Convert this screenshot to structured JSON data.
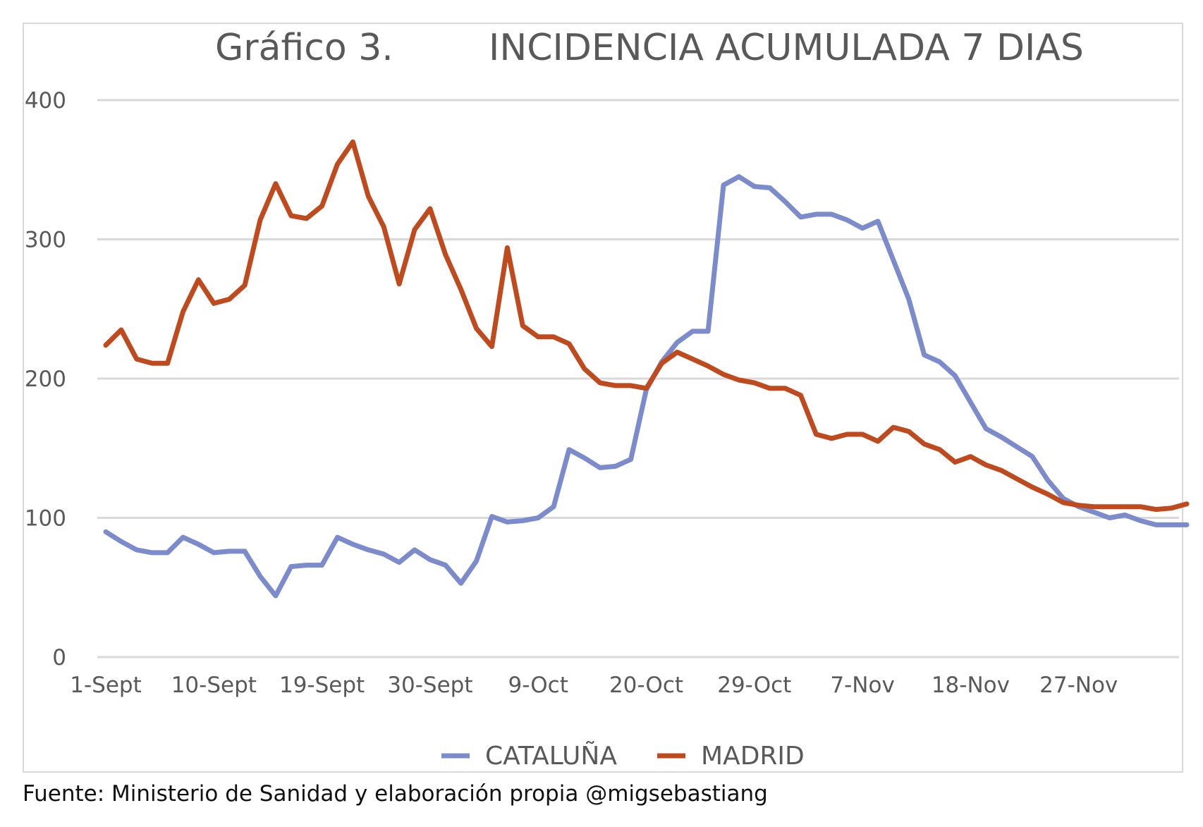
{
  "chart_data": {
    "type": "line",
    "title_number": "Gráfico 3.",
    "title": "INCIDENCIA ACUMULADA 7 DIAS",
    "xlabel": "",
    "ylabel": "",
    "ylim": [
      0,
      400
    ],
    "yticks": [
      0,
      100,
      200,
      300,
      400
    ],
    "xtick_labels": [
      "1-Sept",
      "10-Sept",
      "19-Sept",
      "30-Sept",
      "9-Oct",
      "20-Oct",
      "29-Oct",
      "7-Nov",
      "18-Nov",
      "27-Nov"
    ],
    "xtick_positions": [
      0,
      7,
      14,
      21,
      28,
      35,
      42,
      49,
      56,
      63
    ],
    "grid": true,
    "legend_position": "bottom",
    "series": [
      {
        "name": "CATALUÑA",
        "color": "#7b8bcb",
        "values": [
          90,
          83,
          77,
          75,
          75,
          86,
          81,
          75,
          76,
          76,
          58,
          44,
          65,
          66,
          66,
          86,
          81,
          77,
          74,
          68,
          77,
          70,
          66,
          53,
          69,
          101,
          97,
          98,
          100,
          108,
          149,
          143,
          136,
          137,
          142,
          192,
          212,
          226,
          234,
          234,
          339,
          345,
          338,
          337,
          327,
          316,
          318,
          318,
          314,
          308,
          313,
          285,
          257,
          217,
          212,
          202,
          183,
          164,
          158,
          151,
          144,
          127,
          114,
          108,
          104,
          100,
          102,
          98,
          95,
          95,
          95
        ]
      },
      {
        "name": "MADRID",
        "color": "#bf4a1e",
        "values": [
          224,
          235,
          214,
          211,
          211,
          248,
          271,
          254,
          257,
          267,
          314,
          340,
          317,
          315,
          324,
          354,
          370,
          331,
          309,
          268,
          307,
          322,
          289,
          264,
          236,
          223,
          294,
          238,
          230,
          230,
          225,
          207,
          197,
          195,
          195,
          193,
          211,
          219,
          214,
          209,
          203,
          199,
          197,
          193,
          193,
          188,
          160,
          157,
          160,
          160,
          155,
          165,
          162,
          153,
          149,
          140,
          144,
          138,
          134,
          128,
          122,
          117,
          111,
          109,
          108,
          108,
          108,
          108,
          106,
          107,
          110
        ]
      }
    ]
  },
  "source_note": "Fuente: Ministerio de Sanidad y elaboración propia @migsebastiang"
}
